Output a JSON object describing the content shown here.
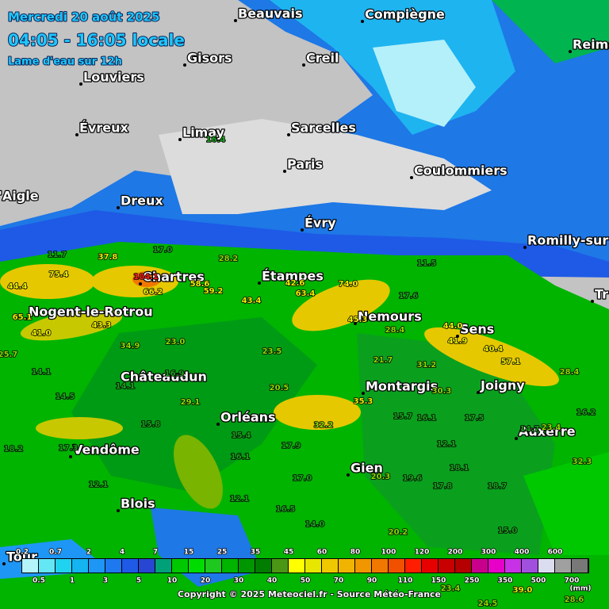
{
  "header": {
    "date": "Mercredi 20 août 2025",
    "period": "04:05 - 16:05 locale",
    "subtitle": "Lame d'eau sur 12h"
  },
  "cities": [
    {
      "name": "Beauvais"
    },
    {
      "name": "Compiègne"
    },
    {
      "name": "Reims"
    },
    {
      "name": "Gisors"
    },
    {
      "name": "Creil"
    },
    {
      "name": "Louviers"
    },
    {
      "name": "Évreux"
    },
    {
      "name": "Limay"
    },
    {
      "name": "Sarcelles"
    },
    {
      "name": "Paris"
    },
    {
      "name": "Coulommiers"
    },
    {
      "name": "'Aigle"
    },
    {
      "name": "Dreux"
    },
    {
      "name": "Évry"
    },
    {
      "name": "Romilly-sur"
    },
    {
      "name": "Tr"
    },
    {
      "name": "Chartres"
    },
    {
      "name": "Étampes"
    },
    {
      "name": "Nemours"
    },
    {
      "name": "Sens"
    },
    {
      "name": "Nogent-le-Rotrou"
    },
    {
      "name": "Châteaudun"
    },
    {
      "name": "Montargis"
    },
    {
      "name": "Joigny"
    },
    {
      "name": "Orléans"
    },
    {
      "name": "Auxerre"
    },
    {
      "name": "Vendôme"
    },
    {
      "name": "Gien"
    },
    {
      "name": "Blois"
    },
    {
      "name": "Tour"
    }
  ],
  "values": [
    "16.4",
    "17.0",
    "11.7",
    "37.8",
    "28.2",
    "11.5",
    "75.4",
    "104.1",
    "58.6",
    "66.2",
    "59.2",
    "42.6",
    "74.0",
    "44.4",
    "63.4",
    "43.4",
    "17.6",
    "65.1",
    "43.3",
    "45.3",
    "28.4",
    "44.0",
    "41.0",
    "41.9",
    "23.0",
    "34.9",
    "40.4",
    "25.7",
    "23.5",
    "21.7",
    "31.2",
    "57.1",
    "14.1",
    "16.9",
    "28.4",
    "14.1",
    "20.5",
    "30.3",
    "14.5",
    "29.1",
    "35.3",
    "15.7",
    "16.1",
    "17.5",
    "16.2",
    "15.8",
    "32.2",
    "14.7",
    "23.4",
    "15.4",
    "18.2",
    "17.3",
    "17.9",
    "12.1",
    "16.1",
    "32.3",
    "20.3",
    "19.6",
    "18.1",
    "17.0",
    "12.1",
    "17.8",
    "18.7",
    "12.1",
    "16.5",
    "14.0",
    "15.0",
    "20.2",
    "23.4",
    "39.0",
    "24.5",
    "28.6"
  ],
  "legend": {
    "labels": [
      "0.2",
      "0.5",
      "0.7",
      "1",
      "2",
      "3",
      "4",
      "5",
      "7",
      "10",
      "15",
      "20",
      "25",
      "30",
      "35",
      "40",
      "45",
      "50",
      "60",
      "70",
      "80",
      "90",
      "100",
      "110",
      "120",
      "150",
      "200",
      "250",
      "300",
      "350",
      "400",
      "500",
      "600",
      "700"
    ],
    "unit": "(mm)",
    "colors": [
      "#b4f5fa",
      "#64e6f5",
      "#1ed2f0",
      "#14b4f0",
      "#1e96f5",
      "#1e78f0",
      "#1e5ae6",
      "#2846d2",
      "#00a078",
      "#00c800",
      "#00dc00",
      "#1ec81e",
      "#00b400",
      "#009600",
      "#007d00",
      "#4b9614",
      "#ffff00",
      "#e6e600",
      "#f0c800",
      "#f0b400",
      "#f09600",
      "#f07800",
      "#f05000",
      "#ff1e00",
      "#e60000",
      "#c80000",
      "#b40000",
      "#c8008c",
      "#e600c8",
      "#c832e6",
      "#a050dc",
      "#dcdcf0",
      "#a0a0a0",
      "#787878"
    ]
  },
  "copyright": "Copyright © 2025 Meteociel.fr  -  Source Météo-France"
}
